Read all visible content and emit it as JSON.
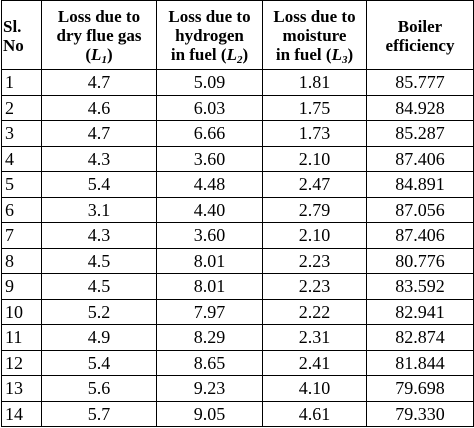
{
  "table": {
    "headers": {
      "sl_line1": "Sl.",
      "sl_line2": "No",
      "l1_line1": "Loss due to",
      "l1_line2": "dry flue gas",
      "l1_sym_open": "(",
      "l1_sym": "L",
      "l1_sub": "1",
      "l1_sym_close": ")",
      "l2_line1": "Loss due to",
      "l2_line2": "hydrogen",
      "l2_line3_prefix": "in fuel ",
      "l2_sym_open": "(",
      "l2_sym": "L",
      "l2_sub": "2",
      "l2_sym_close": ")",
      "l3_line1": "Loss due to",
      "l3_line2": "moisture",
      "l3_line3_prefix": "in fuel ",
      "l3_sym_open": "(",
      "l3_sym": "L",
      "l3_sub": "3",
      "l3_sym_close": ")",
      "eff_line1": "Boiler",
      "eff_line2": "efficiency"
    },
    "rows": [
      {
        "sl": "1",
        "l1": "4.7",
        "l2": "5.09",
        "l3": "1.81",
        "eff": "85.777"
      },
      {
        "sl": "2",
        "l1": "4.6",
        "l2": "6.03",
        "l3": "1.75",
        "eff": "84.928"
      },
      {
        "sl": "3",
        "l1": "4.7",
        "l2": "6.66",
        "l3": "1.73",
        "eff": "85.287"
      },
      {
        "sl": "4",
        "l1": "4.3",
        "l2": "3.60",
        "l3": "2.10",
        "eff": "87.406"
      },
      {
        "sl": "5",
        "l1": "5.4",
        "l2": "4.48",
        "l3": "2.47",
        "eff": "84.891"
      },
      {
        "sl": "6",
        "l1": "3.1",
        "l2": "4.40",
        "l3": "2.79",
        "eff": "87.056"
      },
      {
        "sl": "7",
        "l1": "4.3",
        "l2": "3.60",
        "l3": "2.10",
        "eff": "87.406"
      },
      {
        "sl": "8",
        "l1": "4.5",
        "l2": "8.01",
        "l3": "2.23",
        "eff": "80.776"
      },
      {
        "sl": "9",
        "l1": "4.5",
        "l2": "8.01",
        "l3": "2.23",
        "eff": "83.592"
      },
      {
        "sl": "10",
        "l1": "5.2",
        "l2": "7.97",
        "l3": "2.22",
        "eff": "82.941"
      },
      {
        "sl": "11",
        "l1": "4.9",
        "l2": "8.29",
        "l3": "2.31",
        "eff": "82.874"
      },
      {
        "sl": "12",
        "l1": "5.4",
        "l2": "8.65",
        "l3": "2.41",
        "eff": "81.844"
      },
      {
        "sl": "13",
        "l1": "5.6",
        "l2": "9.23",
        "l3": "4.10",
        "eff": "79.698"
      },
      {
        "sl": "14",
        "l1": "5.7",
        "l2": "9.05",
        "l3": "4.61",
        "eff": "79.330"
      }
    ]
  }
}
